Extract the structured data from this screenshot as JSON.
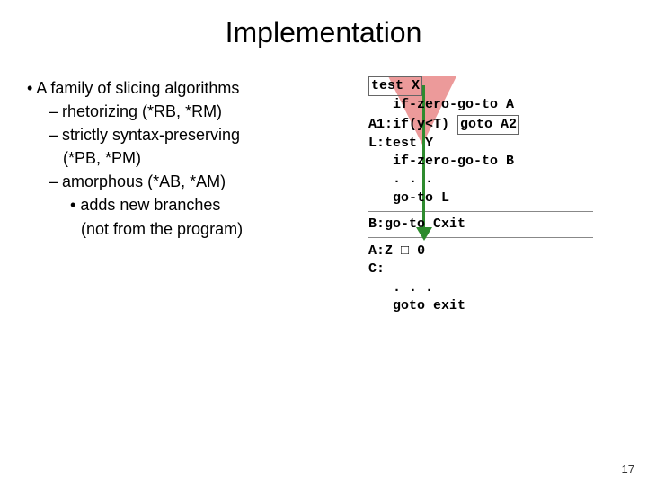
{
  "title": "Implementation",
  "bullets": {
    "main": "A family of slicing algorithms",
    "sub1": "rhetorizing (*RB, *RM)",
    "sub2a": "strictly syntax-preserving",
    "sub2b": "(*PB, *PM)",
    "sub3": "amorphous (*AB, *AM)",
    "sub3a": "adds new branches",
    "sub3b": "(not from the program)"
  },
  "code": {
    "l1": "test X",
    "l2": "   if-zero-go-to A",
    "l3a": "A1:if(y<T)",
    "l3b": "goto A2",
    "l4": "L:test Y",
    "l5": "   if-zero-go-to B",
    "l6": "   . . .",
    "l7": "   go-to L",
    "l8": "B:go-to Cxit",
    "l9a": "A:Z ",
    "l9b": " 0",
    "l10": "C:",
    "l11": "   . . .",
    "l12": "   goto exit"
  },
  "square_glyph": "□",
  "page_number": "17"
}
